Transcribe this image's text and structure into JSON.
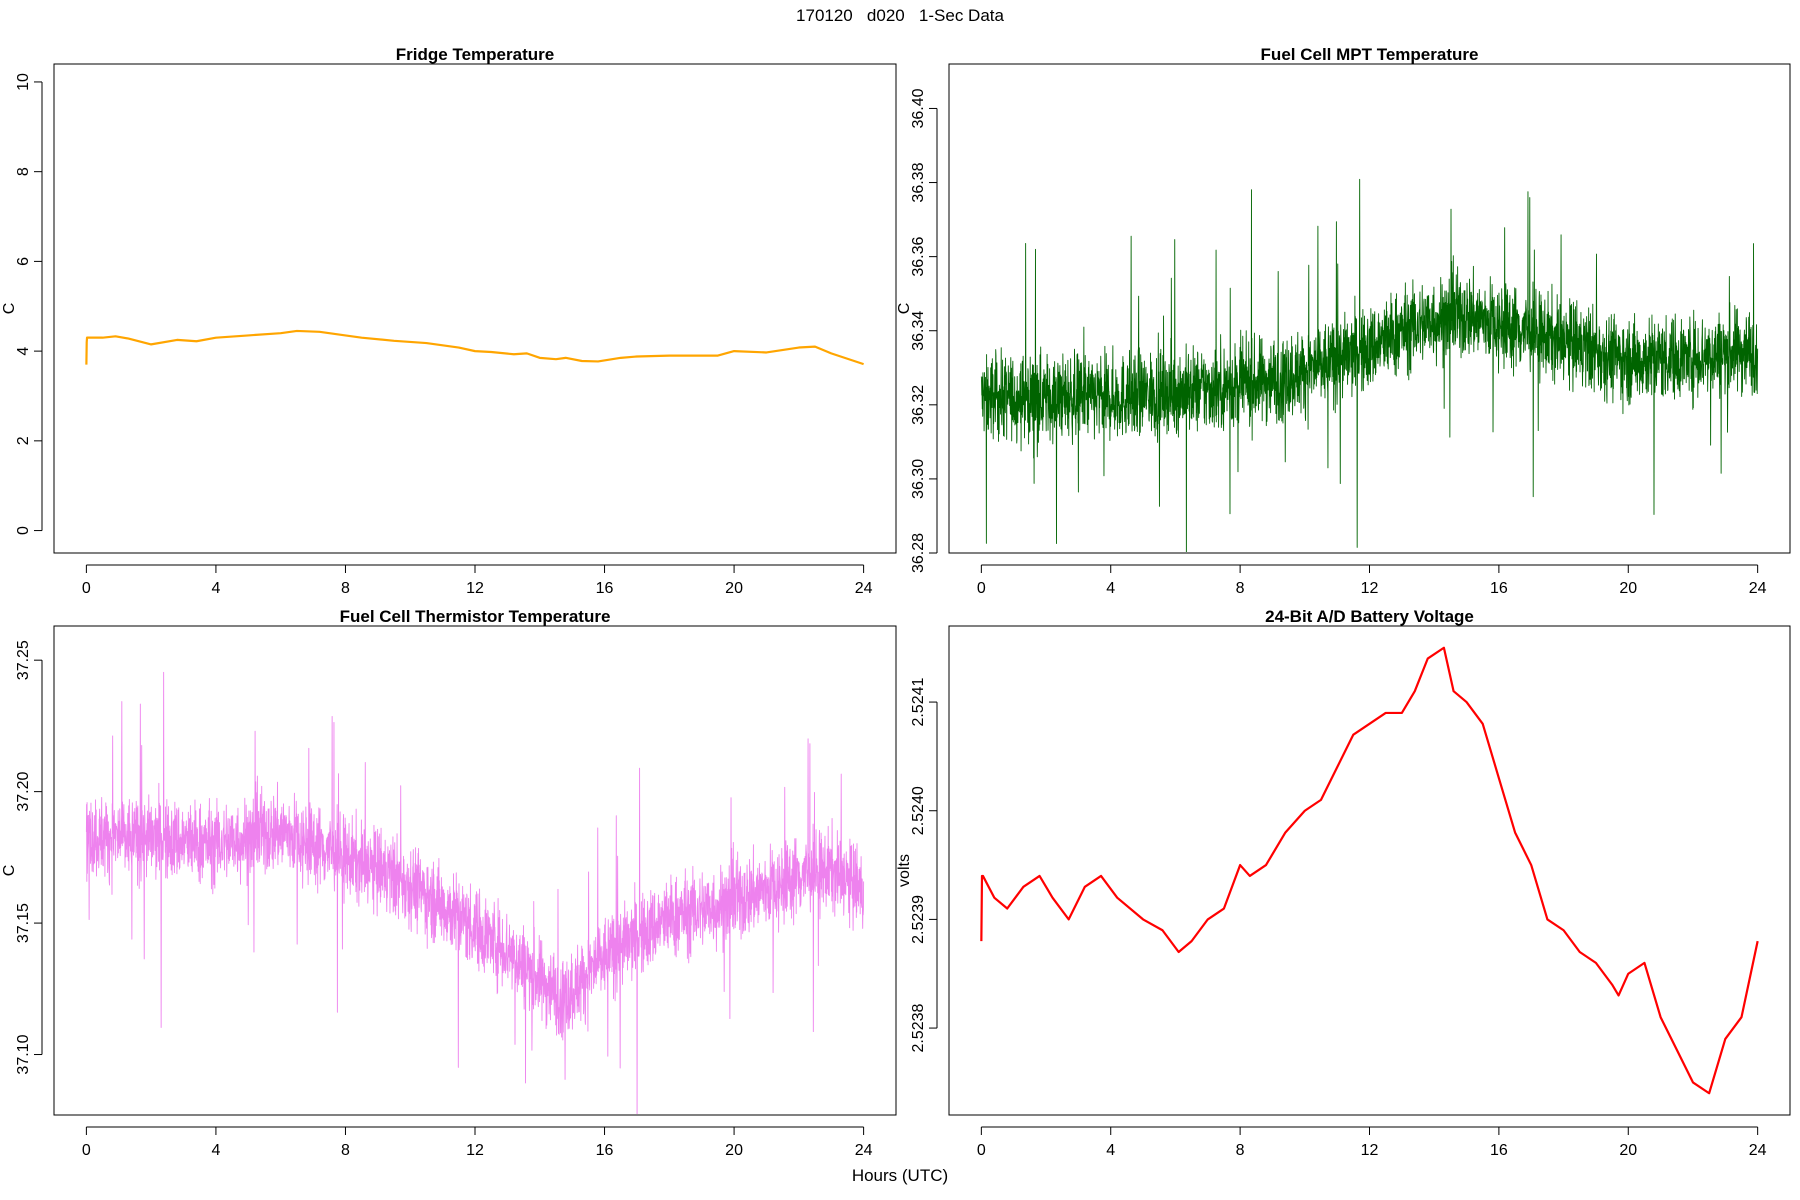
{
  "page_title": "170120   d020   1-Sec Data",
  "x_axis_caption": "Hours (UTC)",
  "chart_data": [
    {
      "type": "line",
      "title": "Fridge Temperature",
      "xlabel": "Hours (UTC)",
      "ylabel": "C",
      "xlim": [
        -1.0,
        25.0
      ],
      "ylim": [
        -0.5,
        10.4
      ],
      "x_ticks": [
        0,
        4,
        8,
        12,
        16,
        20,
        24
      ],
      "y_ticks": [
        0,
        2,
        4,
        6,
        8,
        10
      ],
      "color": "#ffa500",
      "noise": 0.0,
      "series": [
        {
          "x": [
            0,
            0.01,
            0.02,
            0.5,
            0.9,
            1.3,
            2.0,
            2.8,
            3.4,
            4.0,
            5.0,
            6.0,
            6.5,
            7.2,
            8.0,
            8.5,
            9.5,
            10.5,
            11.5,
            12.0,
            12.5,
            13.2,
            13.6,
            14.0,
            14.5,
            14.8,
            15.3,
            15.8,
            16.5,
            17.0,
            18.0,
            18.5,
            19.5,
            20.0,
            21.0,
            22.0,
            22.5,
            23.0,
            24.0
          ],
          "y": [
            3.7,
            4.2,
            4.3,
            4.3,
            4.33,
            4.28,
            4.15,
            4.25,
            4.22,
            4.3,
            4.35,
            4.4,
            4.45,
            4.43,
            4.35,
            4.3,
            4.23,
            4.18,
            4.08,
            4.0,
            3.98,
            3.93,
            3.95,
            3.85,
            3.82,
            3.85,
            3.78,
            3.77,
            3.85,
            3.88,
            3.9,
            3.9,
            3.9,
            4.0,
            3.97,
            4.08,
            4.1,
            3.95,
            3.71
          ]
        }
      ]
    },
    {
      "type": "line",
      "title": "Fuel Cell MPT Temperature",
      "xlabel": "Hours (UTC)",
      "ylabel": "C",
      "xlim": [
        -1.0,
        25.0
      ],
      "ylim": [
        36.28,
        36.412
      ],
      "x_ticks": [
        0,
        4,
        8,
        12,
        16,
        20,
        24
      ],
      "y_ticks": [
        36.28,
        36.3,
        36.32,
        36.34,
        36.36,
        36.38,
        36.4
      ],
      "color": "#006400",
      "noise": 0.011,
      "series": [
        {
          "x": [
            0,
            4,
            8,
            10,
            12,
            13,
            14,
            15,
            16,
            18,
            20,
            22,
            24
          ],
          "y": [
            36.322,
            36.322,
            36.325,
            36.329,
            36.335,
            36.34,
            36.343,
            36.344,
            36.342,
            36.337,
            36.332,
            36.333,
            36.335
          ]
        }
      ]
    },
    {
      "type": "line",
      "title": "Fuel Cell Thermistor Temperature",
      "xlabel": "Hours (UTC)",
      "ylabel": "C",
      "xlim": [
        -1.0,
        25.0
      ],
      "ylim": [
        37.077,
        37.263
      ],
      "x_ticks": [
        0,
        4,
        8,
        12,
        16,
        20,
        24
      ],
      "y_ticks": [
        37.1,
        37.15,
        37.2,
        37.25
      ],
      "color": "#ee82ee",
      "noise": 0.015,
      "series": [
        {
          "x": [
            0,
            2,
            4,
            6,
            7,
            8,
            10,
            12,
            13,
            14,
            14.8,
            16,
            18,
            20,
            22,
            23,
            24
          ],
          "y": [
            37.183,
            37.182,
            37.18,
            37.185,
            37.18,
            37.175,
            37.165,
            37.148,
            37.14,
            37.128,
            37.122,
            37.137,
            37.152,
            37.158,
            37.168,
            37.17,
            37.162
          ]
        }
      ]
    },
    {
      "type": "line",
      "title": "24-Bit A/D Battery Voltage",
      "xlabel": "Hours (UTC)",
      "ylabel": "volts",
      "xlim": [
        -1.0,
        25.0
      ],
      "ylim": [
        2.52372,
        2.52417
      ],
      "x_ticks": [
        0,
        4,
        8,
        12,
        16,
        20,
        24
      ],
      "y_ticks": [
        2.5238,
        2.5239,
        2.524,
        2.5241
      ],
      "color": "#ff0000",
      "noise": 0.0,
      "series": [
        {
          "x": [
            0,
            0.02,
            0.05,
            0.4,
            0.8,
            1.3,
            1.8,
            2.2,
            2.7,
            3.2,
            3.7,
            4.2,
            5.0,
            5.6,
            6.1,
            6.5,
            7.0,
            7.5,
            8.0,
            8.3,
            8.8,
            9.4,
            10.0,
            10.5,
            11.0,
            11.5,
            12.0,
            12.5,
            13.0,
            13.4,
            13.8,
            14.3,
            14.6,
            15.0,
            15.5,
            16.0,
            16.5,
            17.0,
            17.5,
            18.0,
            18.5,
            19.0,
            19.5,
            19.7,
            20.0,
            20.5,
            21.0,
            21.5,
            22.0,
            22.5,
            23.0,
            23.5,
            24.0
          ],
          "y": [
            2.52388,
            2.52394,
            2.52394,
            2.52392,
            2.52391,
            2.52393,
            2.52394,
            2.52392,
            2.5239,
            2.52393,
            2.52394,
            2.52392,
            2.5239,
            2.52389,
            2.52387,
            2.52388,
            2.5239,
            2.52391,
            2.52395,
            2.52394,
            2.52395,
            2.52398,
            2.524,
            2.52401,
            2.52404,
            2.52407,
            2.52408,
            2.52409,
            2.52409,
            2.52411,
            2.52414,
            2.52415,
            2.52411,
            2.5241,
            2.52408,
            2.52403,
            2.52398,
            2.52395,
            2.5239,
            2.52389,
            2.52387,
            2.52386,
            2.52384,
            2.52383,
            2.52385,
            2.52386,
            2.52381,
            2.52378,
            2.52375,
            2.52374,
            2.52379,
            2.52381,
            2.52388
          ]
        }
      ]
    }
  ]
}
